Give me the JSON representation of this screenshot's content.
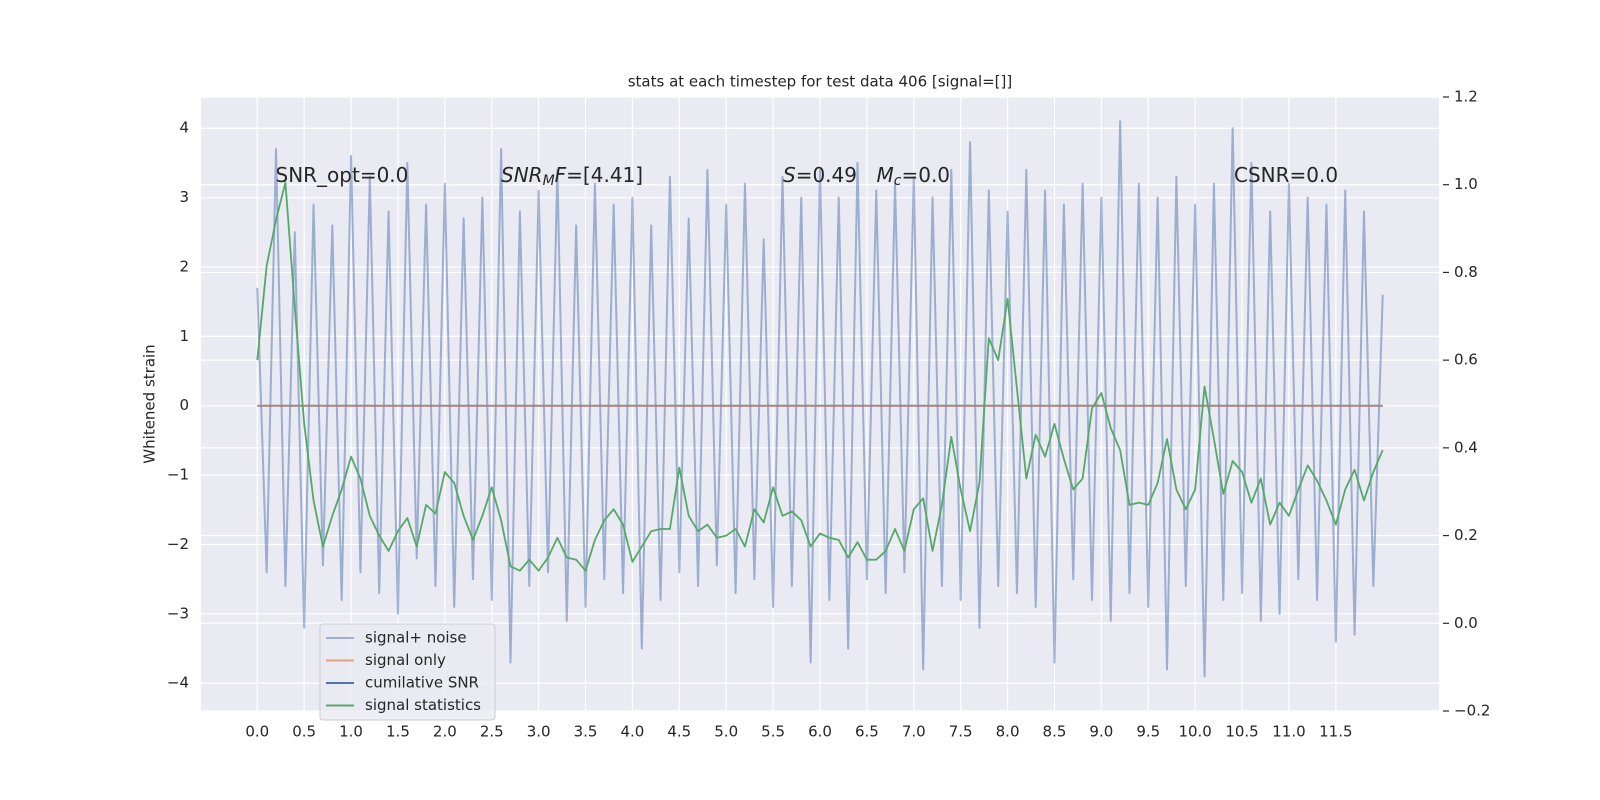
{
  "chart_data": {
    "type": "line",
    "title": "stats at each timestep for test data 406 [signal=[]]",
    "ylabel": "Whitened strain",
    "x": [
      0,
      0.1,
      0.2,
      0.3,
      0.4,
      0.5,
      0.6,
      0.7,
      0.8,
      0.9,
      1,
      1.1,
      1.2,
      1.3,
      1.4,
      1.5,
      1.6,
      1.7,
      1.8,
      1.9,
      2,
      2.1,
      2.2,
      2.3,
      2.4,
      2.5,
      2.6,
      2.7,
      2.8,
      2.9,
      3,
      3.1,
      3.2,
      3.3,
      3.4,
      3.5,
      3.6,
      3.7,
      3.8,
      3.9,
      4,
      4.1,
      4.2,
      4.3,
      4.4,
      4.5,
      4.6,
      4.7,
      4.8,
      4.9,
      5,
      5.1,
      5.2,
      5.3,
      5.4,
      5.5,
      5.6,
      5.7,
      5.8,
      5.9,
      6,
      6.1,
      6.2,
      6.3,
      6.4,
      6.5,
      6.6,
      6.7,
      6.8,
      6.9,
      7,
      7.1,
      7.2,
      7.3,
      7.4,
      7.5,
      7.6,
      7.7,
      7.8,
      7.9,
      8,
      8.1,
      8.2,
      8.3,
      8.4,
      8.5,
      8.6,
      8.7,
      8.8,
      8.9,
      9,
      9.1,
      9.2,
      9.3,
      9.4,
      9.5,
      9.6,
      9.7,
      9.8,
      9.9,
      10,
      10.1,
      10.2,
      10.3,
      10.4,
      10.5,
      10.6,
      10.7,
      10.8,
      10.9,
      11,
      11.1,
      11.2,
      11.3,
      11.4,
      11.5,
      11.6,
      11.7,
      11.8,
      11.9,
      12
    ],
    "series": [
      {
        "name": "signal+ noise",
        "color": "#4c72b0",
        "alpha": 0.5,
        "values": [
          1.7,
          -2.4,
          3.7,
          -2.6,
          2.5,
          -3.2,
          2.9,
          -2.3,
          2.6,
          -2.8,
          3.6,
          -2.4,
          3.3,
          -2.7,
          2.8,
          -3.0,
          3.5,
          -2.2,
          2.9,
          -2.6,
          3.2,
          -2.9,
          2.7,
          -2.5,
          3.0,
          -2.8,
          3.7,
          -3.7,
          2.8,
          -2.6,
          3.1,
          -2.4,
          3.4,
          -3.1,
          2.6,
          -2.9,
          3.2,
          -2.5,
          2.9,
          -2.7,
          3.0,
          -3.5,
          2.6,
          -2.8,
          3.3,
          -2.4,
          2.7,
          -2.6,
          3.4,
          -2.3,
          2.9,
          -2.7,
          3.2,
          -2.5,
          2.4,
          -2.9,
          3.3,
          -2.6,
          3.0,
          -3.7,
          3.4,
          -2.8,
          3.0,
          -3.5,
          3.5,
          -2.5,
          3.1,
          -2.7,
          3.2,
          -2.4,
          3.3,
          -3.8,
          3.0,
          -2.6,
          3.4,
          -2.8,
          3.8,
          -3.2,
          3.1,
          -2.6,
          2.8,
          -2.7,
          3.4,
          -2.9,
          3.1,
          -3.7,
          2.9,
          -2.5,
          3.2,
          -2.8,
          3.0,
          -3.1,
          4.1,
          -2.7,
          3.2,
          -2.9,
          3.0,
          -3.8,
          3.3,
          -2.6,
          2.9,
          -3.9,
          3.2,
          -2.8,
          4.0,
          -2.7,
          3.5,
          -3.1,
          2.8,
          -3.0,
          3.2,
          -2.5,
          3.0,
          -2.8,
          2.9,
          -3.4,
          3.1,
          -3.3,
          2.8,
          -2.6,
          1.6
        ]
      },
      {
        "name": "signal only",
        "color": "#dd8452",
        "alpha": 0.7,
        "values": [
          0,
          0,
          0,
          0,
          0,
          0,
          0,
          0,
          0,
          0,
          0,
          0,
          0,
          0,
          0,
          0,
          0,
          0,
          0,
          0,
          0,
          0,
          0,
          0,
          0,
          0,
          0,
          0,
          0,
          0,
          0,
          0,
          0,
          0,
          0,
          0,
          0,
          0,
          0,
          0,
          0,
          0,
          0,
          0,
          0,
          0,
          0,
          0,
          0,
          0,
          0,
          0,
          0,
          0,
          0,
          0,
          0,
          0,
          0,
          0,
          0,
          0,
          0,
          0,
          0,
          0,
          0,
          0,
          0,
          0,
          0,
          0,
          0,
          0,
          0,
          0,
          0,
          0,
          0,
          0,
          0,
          0,
          0,
          0,
          0,
          0,
          0,
          0,
          0,
          0,
          0,
          0,
          0,
          0,
          0,
          0,
          0,
          0,
          0,
          0,
          0,
          0,
          0,
          0,
          0,
          0,
          0,
          0,
          0,
          0,
          0,
          0,
          0,
          0,
          0,
          0,
          0,
          0,
          0,
          0,
          0
        ]
      },
      {
        "name": "cumilative SNR",
        "color": "#4c72b0",
        "alpha": 1,
        "values": [
          0,
          0,
          0,
          0,
          0,
          0,
          0,
          0,
          0,
          0,
          0,
          0,
          0,
          0,
          0,
          0,
          0,
          0,
          0,
          0,
          0,
          0,
          0,
          0,
          0,
          0,
          0,
          0,
          0,
          0,
          0,
          0,
          0,
          0,
          0,
          0,
          0,
          0,
          0,
          0,
          0,
          0,
          0,
          0,
          0,
          0,
          0,
          0,
          0,
          0,
          0,
          0,
          0,
          0,
          0,
          0,
          0,
          0,
          0,
          0,
          0,
          0,
          0,
          0,
          0,
          0,
          0,
          0,
          0,
          0,
          0,
          0,
          0,
          0,
          0,
          0,
          0,
          0,
          0,
          0,
          0,
          0,
          0,
          0,
          0,
          0,
          0,
          0,
          0,
          0,
          0,
          0,
          0,
          0,
          0,
          0,
          0,
          0,
          0,
          0,
          0,
          0,
          0,
          0,
          0,
          0,
          0,
          0,
          0,
          0,
          0,
          0,
          0,
          0,
          0,
          0,
          0,
          0,
          0,
          0,
          0
        ]
      },
      {
        "name": "signal statistics",
        "color": "#55a868",
        "alpha": 1,
        "axis": "y2",
        "values": [
          0.6,
          0.815,
          0.92,
          1.005,
          0.72,
          0.455,
          0.28,
          0.175,
          0.245,
          0.305,
          0.38,
          0.33,
          0.245,
          0.2,
          0.165,
          0.21,
          0.24,
          0.175,
          0.27,
          0.25,
          0.345,
          0.32,
          0.245,
          0.19,
          0.245,
          0.31,
          0.235,
          0.13,
          0.12,
          0.145,
          0.12,
          0.15,
          0.195,
          0.15,
          0.145,
          0.12,
          0.19,
          0.235,
          0.26,
          0.225,
          0.14,
          0.175,
          0.21,
          0.215,
          0.215,
          0.355,
          0.245,
          0.21,
          0.225,
          0.195,
          0.2,
          0.215,
          0.175,
          0.26,
          0.23,
          0.31,
          0.245,
          0.255,
          0.235,
          0.175,
          0.205,
          0.195,
          0.19,
          0.15,
          0.185,
          0.145,
          0.145,
          0.165,
          0.215,
          0.165,
          0.26,
          0.285,
          0.165,
          0.27,
          0.425,
          0.305,
          0.21,
          0.32,
          0.65,
          0.6,
          0.74,
          0.535,
          0.33,
          0.43,
          0.38,
          0.455,
          0.375,
          0.305,
          0.33,
          0.49,
          0.525,
          0.445,
          0.395,
          0.27,
          0.275,
          0.27,
          0.32,
          0.42,
          0.305,
          0.26,
          0.305,
          0.54,
          0.42,
          0.295,
          0.37,
          0.345,
          0.275,
          0.33,
          0.225,
          0.275,
          0.245,
          0.305,
          0.36,
          0.325,
          0.28,
          0.225,
          0.305,
          0.35,
          0.28,
          0.345,
          0.395
        ]
      }
    ],
    "xlim": [
      -0.6,
      12.6
    ],
    "xticks": [
      {
        "value": 0,
        "label": "0.0"
      },
      0.5,
      {
        "value": 1,
        "label": "1.0"
      },
      1.5,
      {
        "value": 2,
        "label": "2.0"
      },
      2.5,
      {
        "value": 3,
        "label": "3.0"
      },
      3.5,
      {
        "value": 4,
        "label": "4.0"
      },
      4.5,
      {
        "value": 5,
        "label": "5.0"
      },
      5.5,
      {
        "value": 6,
        "label": "6.0"
      },
      6.5,
      {
        "value": 7,
        "label": "7.0"
      },
      7.5,
      {
        "value": 8,
        "label": "8.0"
      },
      8.5,
      {
        "value": 9,
        "label": "9.0"
      },
      9.5,
      {
        "value": 10,
        "label": "10.0"
      },
      10.5,
      {
        "value": 11,
        "label": "11.0"
      },
      11.5
    ],
    "ylim": [
      -4.4,
      4.45
    ],
    "yticks": [
      {
        "value": -4,
        "label": "−4"
      },
      {
        "value": -3,
        "label": "−3"
      },
      {
        "value": -2,
        "label": "−2"
      },
      {
        "value": -1,
        "label": "−1"
      },
      0,
      1,
      2,
      3,
      4
    ],
    "y2lim": [
      -0.2,
      1.2
    ],
    "y2ticks": [
      {
        "value": -0.2,
        "label": "−0.2"
      },
      {
        "value": 0,
        "label": "0.0"
      },
      0.2,
      0.4,
      0.6,
      0.8,
      {
        "value": 1,
        "label": "1.0"
      },
      1.2
    ],
    "grid": true,
    "legend": "lower left",
    "annotations": [
      [
        {
          "text": "SNR_opt=0.0"
        }
      ],
      [
        {
          "text": "SNR",
          "italic": true
        },
        {
          "text": "M",
          "italic": true,
          "sub": true
        },
        {
          "text": "F",
          "italic": true
        },
        {
          "text": "=[4.41]"
        }
      ],
      [
        {
          "text": "S",
          "italic": true
        },
        {
          "text": "=0.49"
        }
      ],
      [
        {
          "text": "M",
          "italic": true
        },
        {
          "text": "c",
          "italic": true,
          "sub": true
        },
        {
          "text": "=0.0"
        }
      ],
      [
        {
          "text": "CSNR=0.0"
        }
      ]
    ]
  }
}
